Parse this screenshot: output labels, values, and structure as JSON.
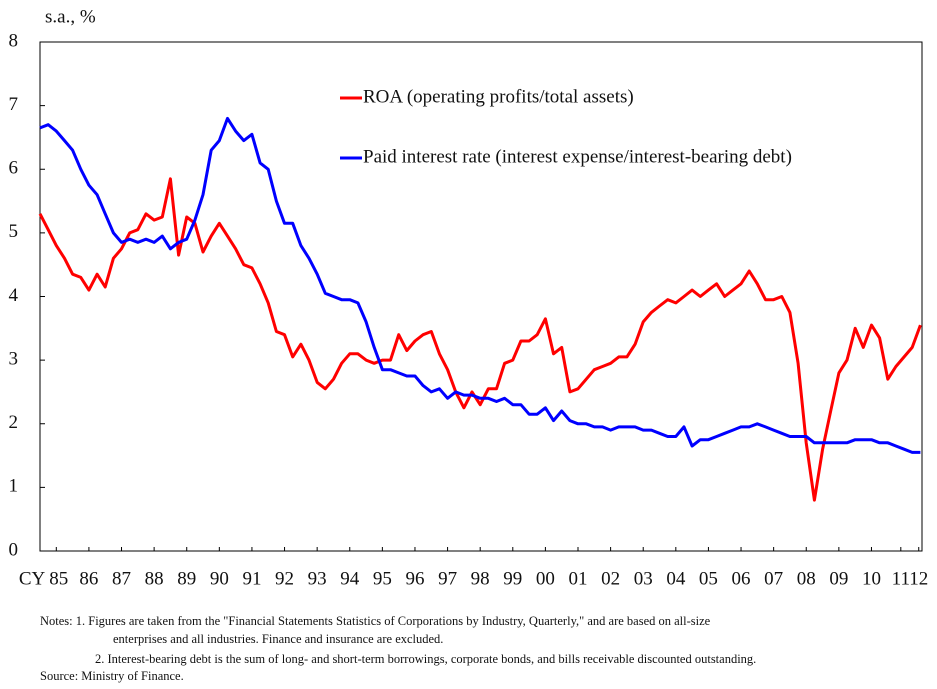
{
  "chart_data": {
    "type": "line",
    "y_axis_label": "s.a., %",
    "x": [
      1985,
      1985.25,
      1985.5,
      1985.75,
      1986,
      1986.25,
      1986.5,
      1986.75,
      1987,
      1987.25,
      1987.5,
      1987.75,
      1988,
      1988.25,
      1988.5,
      1988.75,
      1989,
      1989.25,
      1989.5,
      1989.75,
      1990,
      1990.25,
      1990.5,
      1990.75,
      1991,
      1991.25,
      1991.5,
      1991.75,
      1992,
      1992.25,
      1992.5,
      1992.75,
      1993,
      1993.25,
      1993.5,
      1993.75,
      1994,
      1994.25,
      1994.5,
      1994.75,
      1995,
      1995.25,
      1995.5,
      1995.75,
      1996,
      1996.25,
      1996.5,
      1996.75,
      1997,
      1997.25,
      1997.5,
      1997.75,
      1998,
      1998.25,
      1998.5,
      1998.75,
      1999,
      1999.25,
      1999.5,
      1999.75,
      2000,
      2000.25,
      2000.5,
      2000.75,
      2001,
      2001.25,
      2001.5,
      2001.75,
      2002,
      2002.25,
      2002.5,
      2002.75,
      2003,
      2003.25,
      2003.5,
      2003.75,
      2004,
      2004.25,
      2004.5,
      2004.75,
      2005,
      2005.25,
      2005.5,
      2005.75,
      2006,
      2006.25,
      2006.5,
      2006.75,
      2007,
      2007.25,
      2007.5,
      2007.75,
      2008,
      2008.25,
      2008.5,
      2008.75,
      2009,
      2009.25,
      2009.5,
      2009.75,
      2010,
      2010.25,
      2010.5,
      2010.75,
      2011,
      2011.25,
      2011.5,
      2011.75,
      2012
    ],
    "series": [
      {
        "name": "ROA (operating profits/total assets)",
        "color": "#ff0000",
        "values": [
          5.3,
          5.05,
          4.8,
          4.6,
          4.35,
          4.3,
          4.1,
          4.35,
          4.15,
          4.6,
          4.75,
          5.0,
          5.05,
          5.3,
          5.2,
          5.25,
          5.85,
          4.65,
          5.25,
          5.15,
          4.7,
          4.95,
          5.15,
          4.95,
          4.75,
          4.5,
          4.45,
          4.2,
          3.9,
          3.45,
          3.4,
          3.05,
          3.25,
          3.0,
          2.65,
          2.55,
          2.7,
          2.95,
          3.1,
          3.1,
          3.0,
          2.95,
          3.0,
          3.0,
          3.4,
          3.15,
          3.3,
          3.4,
          3.45,
          3.1,
          2.85,
          2.5,
          2.25,
          2.5,
          2.3,
          2.55,
          2.55,
          2.95,
          3.0,
          3.3,
          3.3,
          3.4,
          3.65,
          3.1,
          3.2,
          2.5,
          2.55,
          2.7,
          2.85,
          2.9,
          2.95,
          3.05,
          3.05,
          3.25,
          3.6,
          3.75,
          3.85,
          3.95,
          3.9,
          4.0,
          4.1,
          4.0,
          4.1,
          4.2,
          4.0,
          4.1,
          4.2,
          4.4,
          4.2,
          3.95,
          3.95,
          4.0,
          3.75,
          2.95,
          1.7,
          0.8,
          1.6,
          2.2,
          2.8,
          3.0,
          3.5,
          3.2,
          3.55,
          3.35,
          2.7,
          2.9,
          3.05,
          3.2,
          3.55
        ]
      },
      {
        "name": "Paid interest rate (interest expense/interest-bearing debt)",
        "color": "#0000ff",
        "values": [
          6.65,
          6.7,
          6.6,
          6.45,
          6.3,
          6.0,
          5.75,
          5.6,
          5.3,
          5.0,
          4.85,
          4.9,
          4.85,
          4.9,
          4.85,
          4.95,
          4.75,
          4.85,
          4.9,
          5.2,
          5.6,
          6.3,
          6.45,
          6.8,
          6.6,
          6.45,
          6.55,
          6.1,
          6.0,
          5.5,
          5.15,
          5.15,
          4.8,
          4.6,
          4.35,
          4.05,
          4.0,
          3.95,
          3.95,
          3.9,
          3.6,
          3.2,
          2.85,
          2.85,
          2.8,
          2.75,
          2.75,
          2.6,
          2.5,
          2.55,
          2.4,
          2.5,
          2.45,
          2.45,
          2.4,
          2.4,
          2.35,
          2.4,
          2.3,
          2.3,
          2.15,
          2.15,
          2.25,
          2.05,
          2.2,
          2.05,
          2.0,
          2.0,
          1.95,
          1.95,
          1.9,
          1.95,
          1.95,
          1.95,
          1.9,
          1.9,
          1.85,
          1.8,
          1.8,
          1.95,
          1.65,
          1.75,
          1.75,
          1.8,
          1.85,
          1.9,
          1.95,
          1.95,
          2.0,
          1.95,
          1.9,
          1.85,
          1.8,
          1.8,
          1.8,
          1.7,
          1.7,
          1.7,
          1.7,
          1.7,
          1.75,
          1.75,
          1.75,
          1.7,
          1.7,
          1.65,
          1.6,
          1.55,
          1.55
        ]
      }
    ],
    "xlim": [
      1985,
      2012.05
    ],
    "xticks": [
      {
        "value": 1985.5,
        "label": "CY 85"
      },
      {
        "value": 1986.5,
        "label": "86"
      },
      {
        "value": 1987.5,
        "label": "87"
      },
      {
        "value": 1988.5,
        "label": "88"
      },
      {
        "value": 1989.5,
        "label": "89"
      },
      {
        "value": 1990.5,
        "label": "90"
      },
      {
        "value": 1991.5,
        "label": "91"
      },
      {
        "value": 1992.5,
        "label": "92"
      },
      {
        "value": 1993.5,
        "label": "93"
      },
      {
        "value": 1994.5,
        "label": "94"
      },
      {
        "value": 1995.5,
        "label": "95"
      },
      {
        "value": 1996.5,
        "label": "96"
      },
      {
        "value": 1997.5,
        "label": "97"
      },
      {
        "value": 1998.5,
        "label": "98"
      },
      {
        "value": 1999.5,
        "label": "99"
      },
      {
        "value": 2000.5,
        "label": "00"
      },
      {
        "value": 2001.5,
        "label": "01"
      },
      {
        "value": 2002.5,
        "label": "02"
      },
      {
        "value": 2003.5,
        "label": "03"
      },
      {
        "value": 2004.5,
        "label": "04"
      },
      {
        "value": 2005.5,
        "label": "05"
      },
      {
        "value": 2006.5,
        "label": "06"
      },
      {
        "value": 2007.5,
        "label": "07"
      },
      {
        "value": 2008.5,
        "label": "08"
      },
      {
        "value": 2009.5,
        "label": "09"
      },
      {
        "value": 2010.5,
        "label": "10"
      },
      {
        "value": 2011.4,
        "label": "11"
      },
      {
        "value": 2011.95,
        "label": "12"
      }
    ],
    "ylim": [
      0,
      8
    ],
    "yticks": [
      0,
      1,
      2,
      3,
      4,
      5,
      6,
      7,
      8
    ],
    "notes": [
      "Notes: 1. Figures are taken from the \"Financial Statements Statistics of Corporations by Industry, Quarterly,\" and are based on all-size",
      "enterprises and all industries. Finance and insurance are excluded.",
      "2. Interest-bearing debt is the sum of long- and short-term borrowings, corporate bonds, and bills receivable discounted outstanding.",
      "Source: Ministry of Finance."
    ]
  }
}
